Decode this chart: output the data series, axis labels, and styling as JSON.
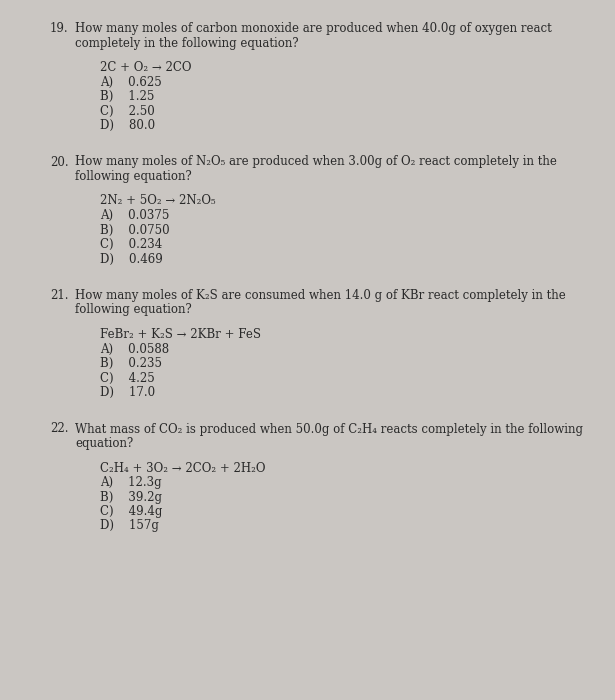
{
  "background_color": "#cac6c2",
  "text_color": "#2a2a2a",
  "font_size": 8.5,
  "figsize": [
    6.15,
    7.0
  ],
  "dpi": 100,
  "questions": [
    {
      "number": "19.",
      "q_line1": "How many moles of carbon monoxide are produced when 40.0g of oxygen react",
      "q_line2": "completely in the following equation?",
      "equation": "2C + O₂ → 2CO",
      "choices": [
        "A)    0.625",
        "B)    1.25",
        "C)    2.50",
        "D)    80.0"
      ]
    },
    {
      "number": "20.",
      "q_line1": "How many moles of N₂O₅ are produced when 3.00g of O₂ react completely in the",
      "q_line2": "following equation?",
      "equation": "2N₂ + 5O₂ → 2N₂O₅",
      "choices": [
        "A)    0.0375",
        "B)    0.0750",
        "C)    0.234",
        "D)    0.469"
      ]
    },
    {
      "number": "21.",
      "q_line1": "How many moles of K₂S are consumed when 14.0 g of KBr react completely in the",
      "q_line2": "following equation?",
      "equation": "FeBr₂ + K₂S → 2KBr + FeS",
      "choices": [
        "A)    0.0588",
        "B)    0.235",
        "C)    4.25",
        "D)    17.0"
      ]
    },
    {
      "number": "22.",
      "q_line1": "What mass of CO₂ is produced when 50.0g of C₂H₄ reacts completely in the following",
      "q_line2": "equation?",
      "equation": "C₂H₄ + 3O₂ → 2CO₂ + 2H₂O",
      "choices": [
        "A)    12.3g",
        "B)    39.2g",
        "C)    49.4g",
        "D)    157g"
      ]
    }
  ]
}
